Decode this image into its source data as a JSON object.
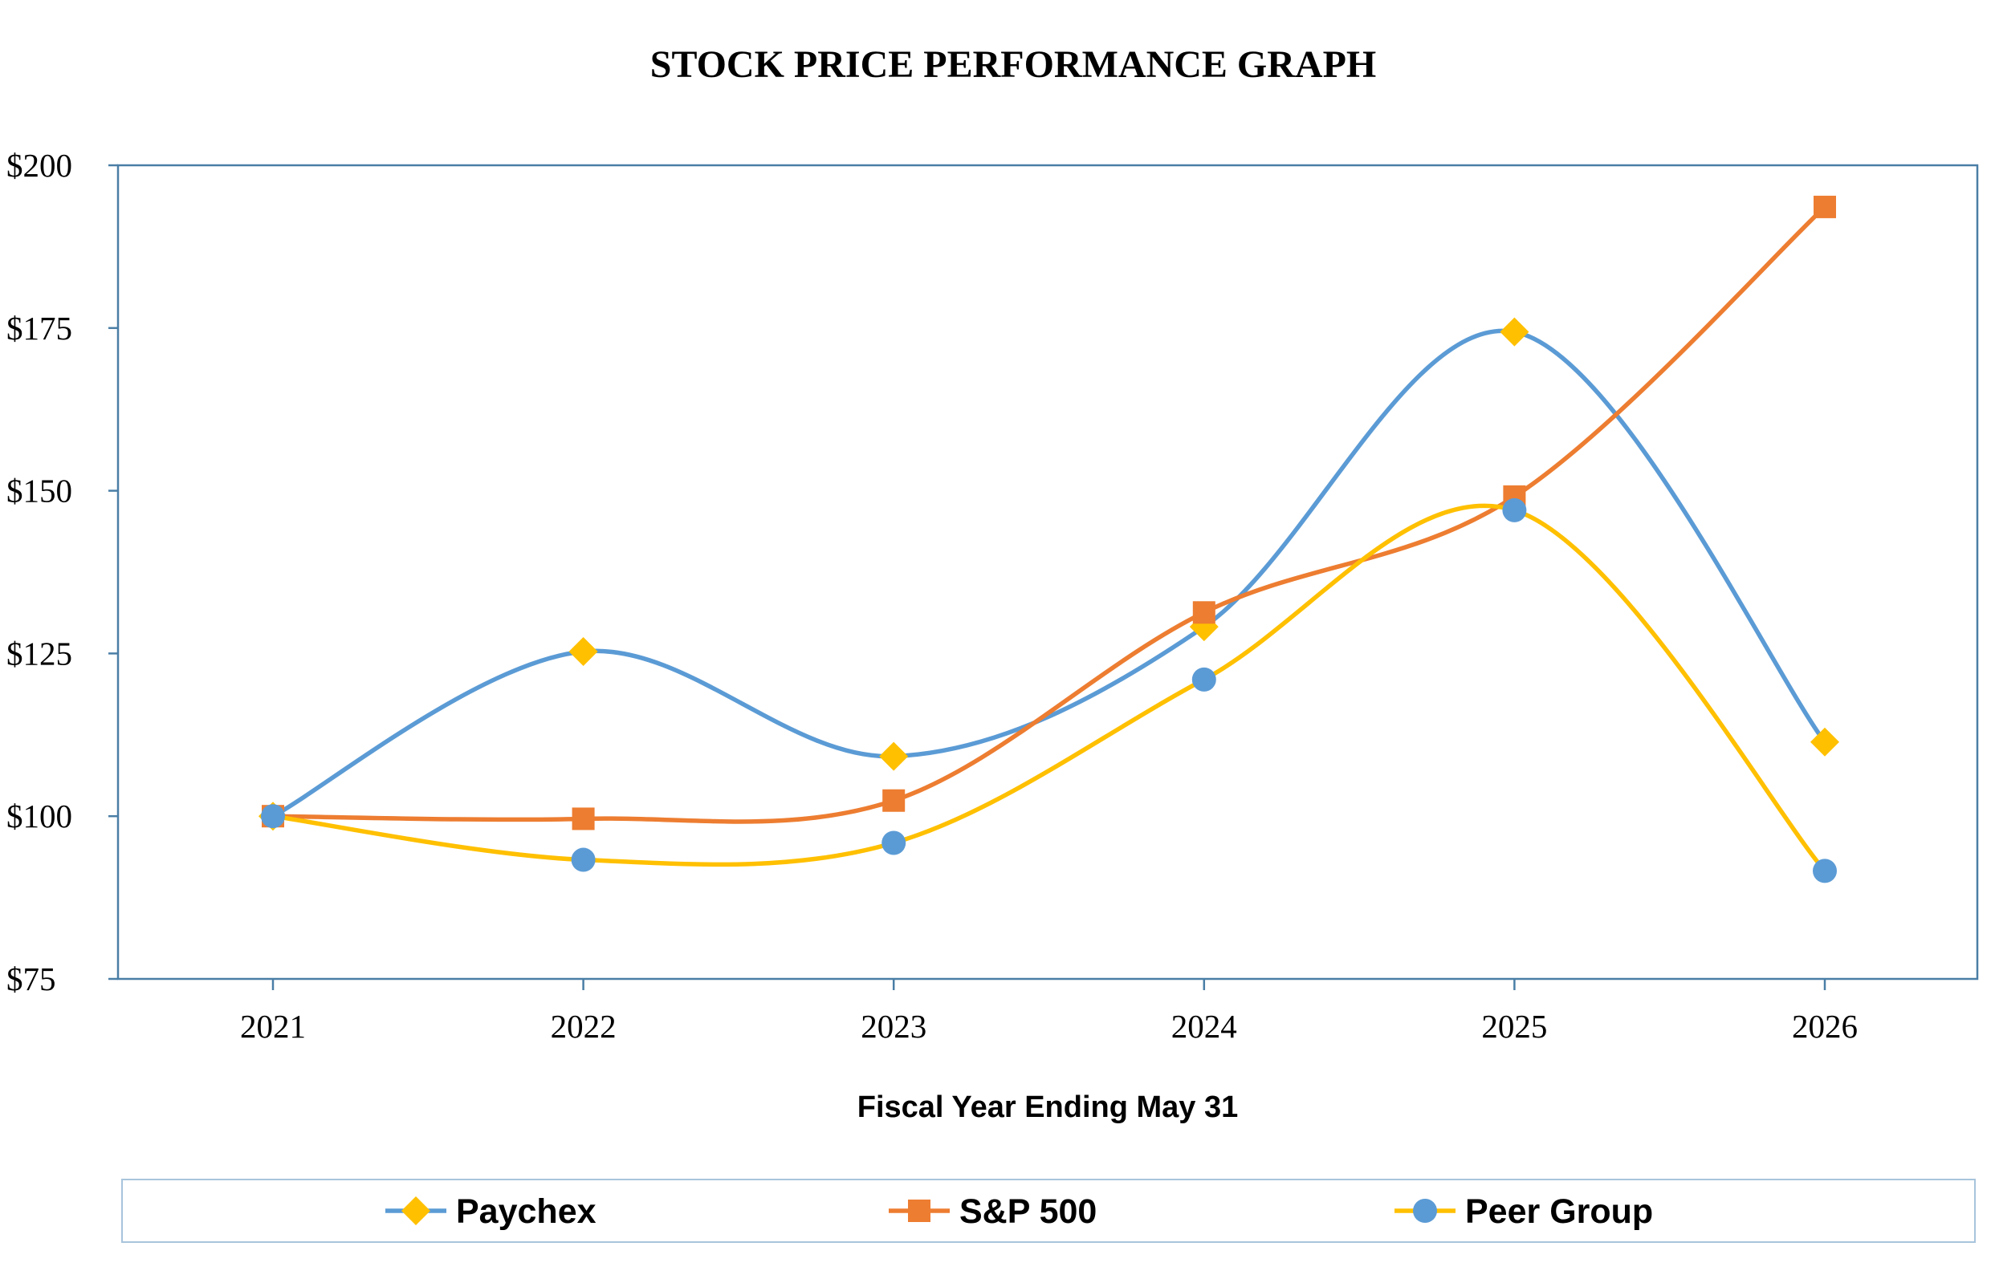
{
  "chart_data": {
    "type": "line",
    "title": "STOCK PRICE PERFORMANCE GRAPH",
    "xlabel": "Fiscal Year Ending May 31",
    "ylabel": "",
    "categories": [
      "2021",
      "2022",
      "2023",
      "2024",
      "2025",
      "2026"
    ],
    "ylim": [
      75,
      200
    ],
    "yticks": [
      75,
      100,
      125,
      150,
      175,
      200
    ],
    "ytick_labels": [
      "$75",
      "$100",
      "$125",
      "$150",
      "$175",
      "$200"
    ],
    "smooth": true,
    "grid": false,
    "legend_position": "bottom",
    "series": [
      {
        "name": "Paychex",
        "values": [
          100,
          125.3,
          109.2,
          129.1,
          174.4,
          111.4
        ],
        "color": "#5B9BD5",
        "marker": "diamond",
        "marker_color": "#FFC000"
      },
      {
        "name": "S&P 500",
        "values": [
          100,
          99.6,
          102.4,
          131.3,
          149.1,
          193.6
        ],
        "color": "#ED7D31",
        "marker": "square",
        "marker_color": "#ED7D31"
      },
      {
        "name": "Peer Group",
        "values": [
          100,
          93.3,
          95.9,
          121.0,
          147.0,
          91.6
        ],
        "color": "#FFC000",
        "marker": "circle",
        "marker_color": "#5B9BD5"
      }
    ]
  }
}
